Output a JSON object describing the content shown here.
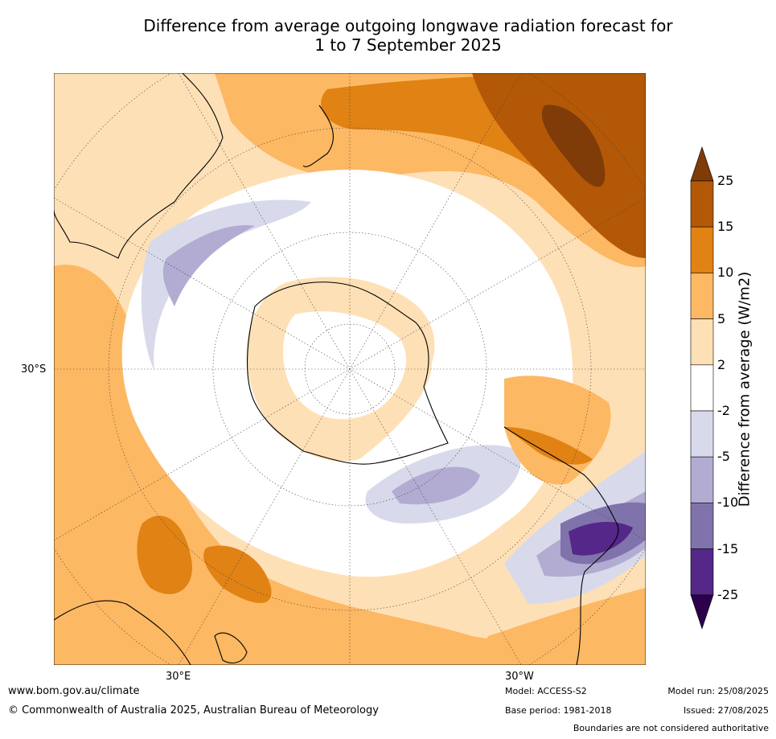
{
  "title": {
    "line1": "Difference from average outgoing longwave radiation forecast for",
    "line2": "1 to 7 September 2025"
  },
  "map_labels": {
    "lat": "30°S",
    "lon_east": "30°E",
    "lon_west": "30°W"
  },
  "colorbar": {
    "title": "Difference from average (W/m2)",
    "ticks": [
      "25",
      "15",
      "10",
      "5",
      "2",
      "-2",
      "-5",
      "-10",
      "-15",
      "-25"
    ],
    "colors": [
      "#7f3b08",
      "#b35806",
      "#e08214",
      "#fdb863",
      "#fee0b6",
      "#ffffff",
      "#d8daeb",
      "#b2abd2",
      "#8073ac",
      "#542788",
      "#2d004b"
    ]
  },
  "footer": {
    "website": "www.bom.gov.au/climate",
    "copyright": "© Commonwealth of Australia 2025, Australian Bureau of Meteorology",
    "model": "Model: ACCESS-S2",
    "base_period": "Base period: 1981-2018",
    "model_run": "Model run: 25/08/2025",
    "issued": "Issued: 27/08/2025",
    "disclaimer": "Boundaries are not considered authoritative"
  }
}
